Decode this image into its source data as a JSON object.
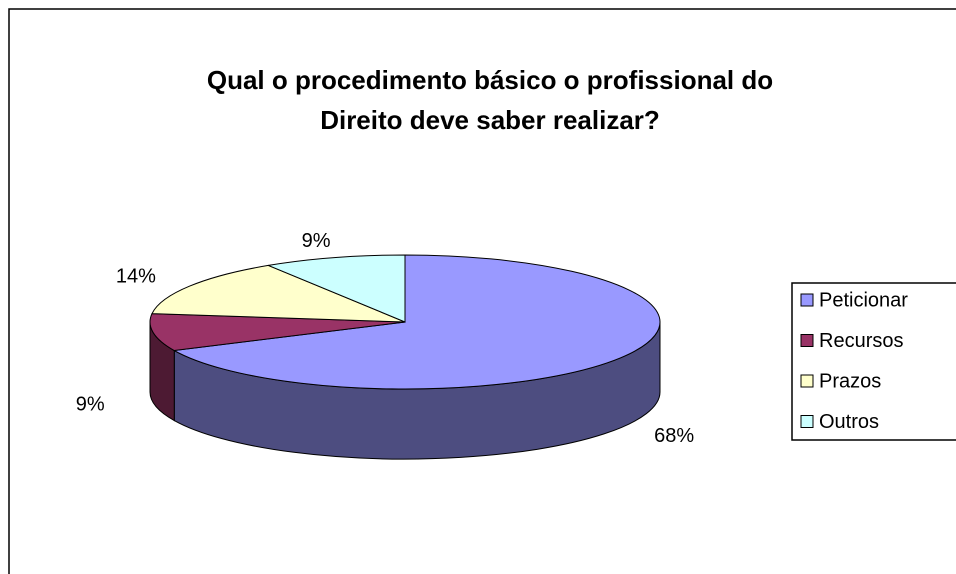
{
  "chart_data": {
    "type": "pie",
    "title": [
      "Qual o procedimento básico o profissional do",
      "Direito deve saber realizar?"
    ],
    "categories": [
      "Peticionar",
      "Recursos",
      "Prazos",
      "Outros"
    ],
    "values": [
      68,
      9,
      14,
      9
    ],
    "value_labels": [
      "68%",
      "9%",
      "14%",
      "9%"
    ],
    "colors": [
      "#9999ff",
      "#993366",
      "#ffffcc",
      "#ccffff"
    ],
    "legend": "right"
  }
}
